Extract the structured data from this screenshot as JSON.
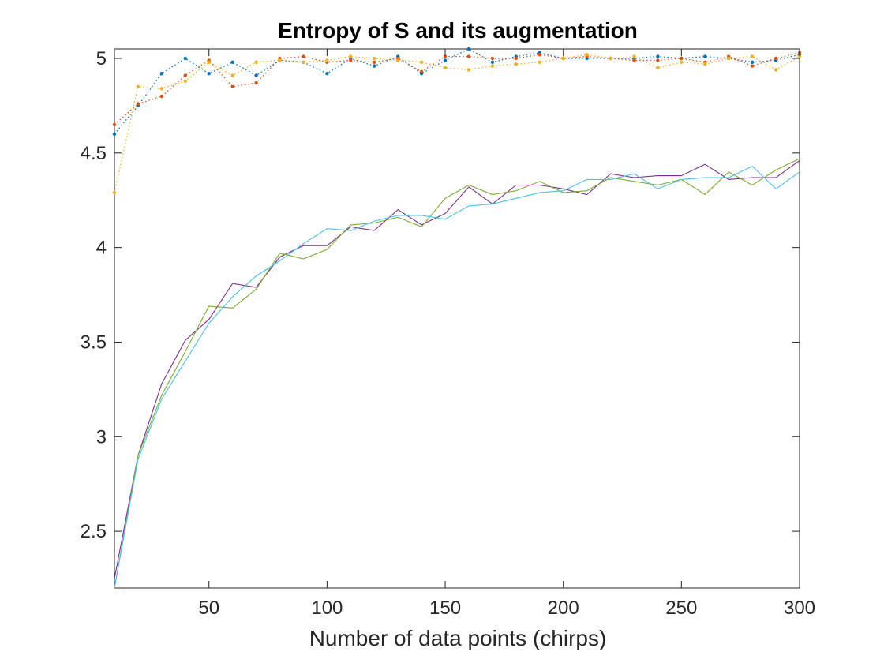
{
  "chart_data": {
    "type": "line",
    "title": "Entropy of S and its augmentation",
    "xlabel": "Number of data points (chirps)",
    "ylabel": "",
    "xlim": [
      10,
      300
    ],
    "ylim": [
      2.2,
      5.05
    ],
    "grid": false,
    "legend": "none",
    "x": [
      10,
      20,
      30,
      40,
      50,
      60,
      70,
      80,
      90,
      100,
      110,
      120,
      130,
      140,
      150,
      160,
      170,
      180,
      190,
      200,
      210,
      220,
      230,
      240,
      250,
      260,
      270,
      280,
      290,
      300
    ],
    "xticks": [
      50,
      100,
      150,
      200,
      250,
      300
    ],
    "xtick_labels": [
      "50",
      "100",
      "150",
      "200",
      "250",
      "300"
    ],
    "yticks": [
      2.5,
      3,
      3.5,
      4,
      4.5,
      5
    ],
    "ytick_labels": [
      "2.5",
      "3",
      "3.5",
      "4",
      "4.5",
      "5"
    ],
    "series": [
      {
        "style": "dotted",
        "marker": "dot",
        "color": "#0072BD",
        "values": [
          4.6,
          4.75,
          4.92,
          5.0,
          4.92,
          4.98,
          4.91,
          4.99,
          4.98,
          4.92,
          5.0,
          4.96,
          5.01,
          4.92,
          4.99,
          5.05,
          4.98,
          5.01,
          5.03,
          5.0,
          5.0,
          5.0,
          5.0,
          5.01,
          5.0,
          5.01,
          5.0,
          4.98,
          4.99,
          5.02
        ]
      },
      {
        "style": "dotted",
        "marker": "dot",
        "color": "#D95319",
        "values": [
          4.65,
          4.76,
          4.8,
          4.91,
          4.99,
          4.85,
          4.87,
          5.0,
          5.01,
          4.98,
          4.99,
          4.98,
          5.0,
          4.93,
          5.01,
          5.01,
          5.0,
          5.0,
          5.02,
          5.0,
          5.01,
          5.0,
          4.99,
          4.99,
          5.0,
          4.98,
          5.01,
          4.96,
          5.0,
          5.03
        ]
      },
      {
        "style": "dotted",
        "marker": "dot",
        "color": "#EDB120",
        "values": [
          4.29,
          4.85,
          4.84,
          4.88,
          4.98,
          4.91,
          4.98,
          4.99,
          4.98,
          4.99,
          5.01,
          5.0,
          4.99,
          4.98,
          4.95,
          4.94,
          4.96,
          4.97,
          4.98,
          5.0,
          5.02,
          5.0,
          5.01,
          4.95,
          4.98,
          4.97,
          5.0,
          5.01,
          4.94,
          5.01
        ]
      },
      {
        "style": "solid",
        "color": "#7E2F8E",
        "values": [
          2.25,
          2.9,
          3.28,
          3.51,
          3.62,
          3.81,
          3.79,
          3.95,
          4.01,
          4.01,
          4.11,
          4.09,
          4.2,
          4.12,
          4.18,
          4.32,
          4.23,
          4.33,
          4.33,
          4.31,
          4.28,
          4.39,
          4.37,
          4.38,
          4.38,
          4.44,
          4.36,
          4.37,
          4.37,
          4.46
        ]
      },
      {
        "style": "solid",
        "color": "#77AC30",
        "values": [
          2.2,
          2.9,
          3.22,
          3.45,
          3.69,
          3.68,
          3.78,
          3.97,
          3.94,
          3.99,
          4.12,
          4.13,
          4.16,
          4.11,
          4.26,
          4.33,
          4.28,
          4.3,
          4.35,
          4.29,
          4.3,
          4.37,
          4.35,
          4.33,
          4.36,
          4.28,
          4.4,
          4.33,
          4.41,
          4.47
        ]
      },
      {
        "style": "solid",
        "color": "#4DBEEE",
        "values": [
          2.2,
          2.88,
          3.2,
          3.4,
          3.6,
          3.74,
          3.85,
          3.93,
          4.02,
          4.1,
          4.09,
          4.14,
          4.17,
          4.17,
          4.15,
          4.22,
          4.23,
          4.26,
          4.29,
          4.3,
          4.36,
          4.36,
          4.39,
          4.31,
          4.36,
          4.37,
          4.37,
          4.43,
          4.31,
          4.4
        ]
      }
    ]
  }
}
